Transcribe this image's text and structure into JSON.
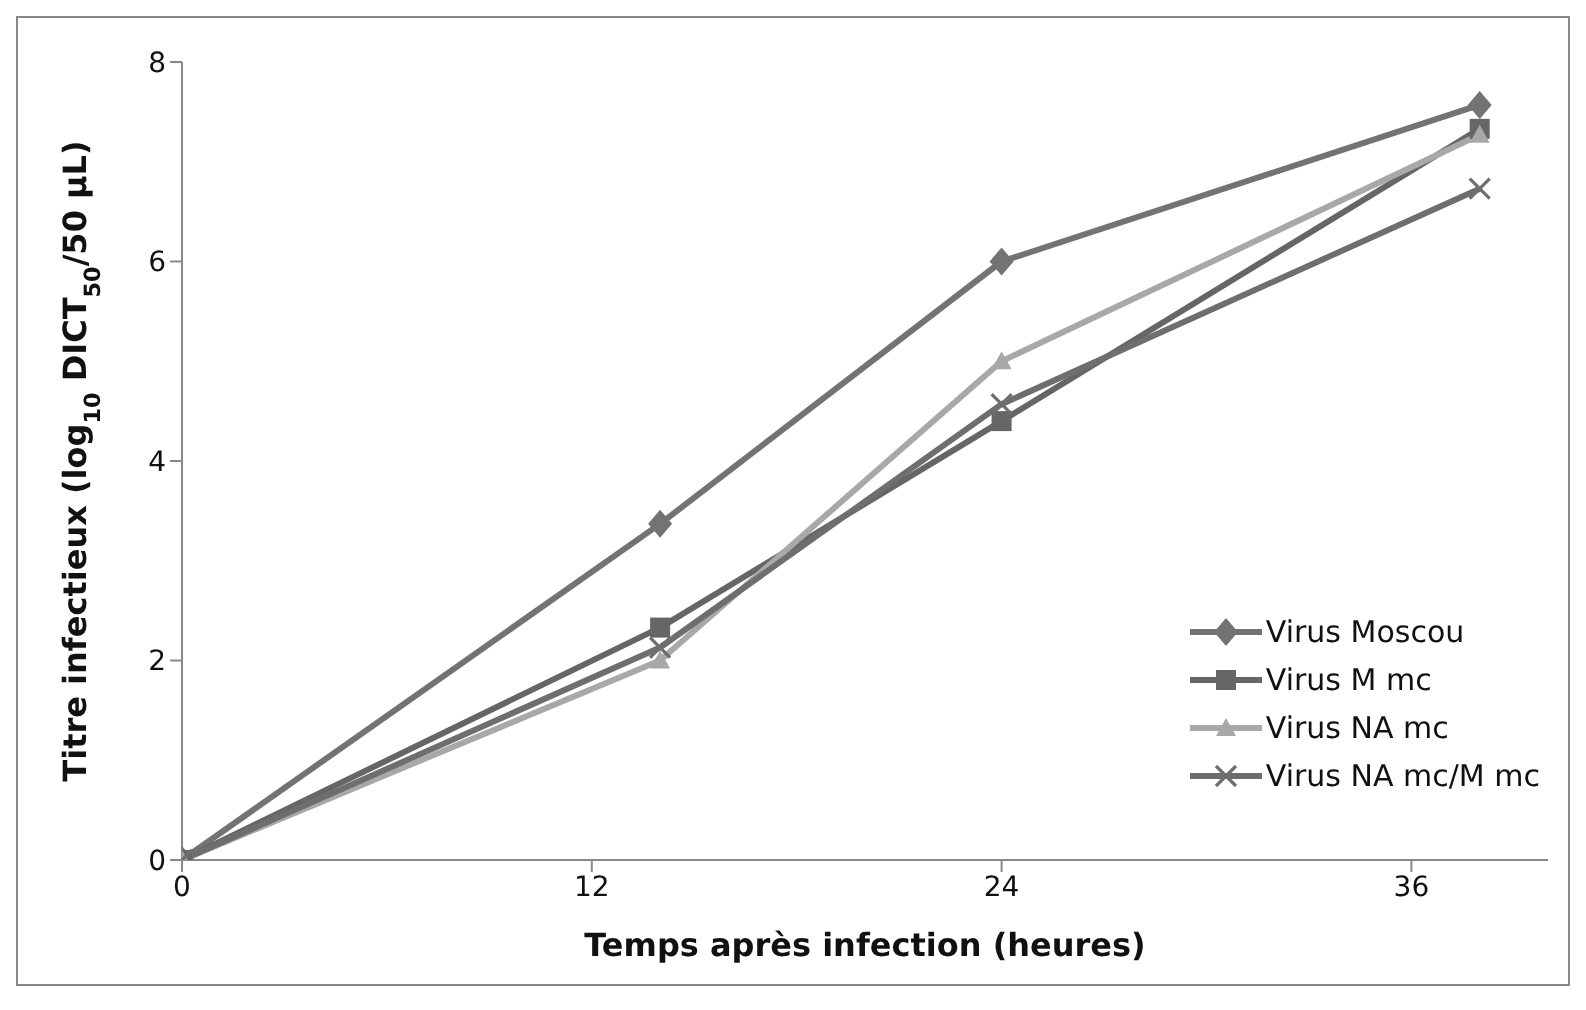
{
  "chart_data": {
    "type": "line",
    "xlabel": "Temps après infection (heures)",
    "ylabel": "Titre infectieux (log$_{10}$ DICT$_{50}$/50 µL)",
    "x": [
      0,
      14,
      24,
      38
    ],
    "xlim": [
      0,
      40
    ],
    "xticks": [
      0,
      12,
      24,
      36
    ],
    "ylim": [
      0,
      8
    ],
    "yticks": [
      0,
      2,
      4,
      6,
      8
    ],
    "grid": false,
    "legend": "bottom right",
    "series": [
      {
        "name": "Virus Moscou",
        "color": "#737373",
        "marker": "diamond",
        "values": [
          0,
          3.37,
          6.0,
          7.57
        ]
      },
      {
        "name": "Virus M mc",
        "color": "#666666",
        "marker": "square",
        "values": [
          0,
          2.33,
          4.4,
          7.33
        ]
      },
      {
        "name": "Virus NA mc",
        "color": "#a8a8a8",
        "marker": "triangle",
        "values": [
          0,
          2.0,
          5.0,
          7.27
        ]
      },
      {
        "name": "Virus NA mc/M mc",
        "color": "#6e6e6e",
        "marker": "cross",
        "values": [
          0,
          2.13,
          4.57,
          6.73
        ]
      }
    ]
  }
}
